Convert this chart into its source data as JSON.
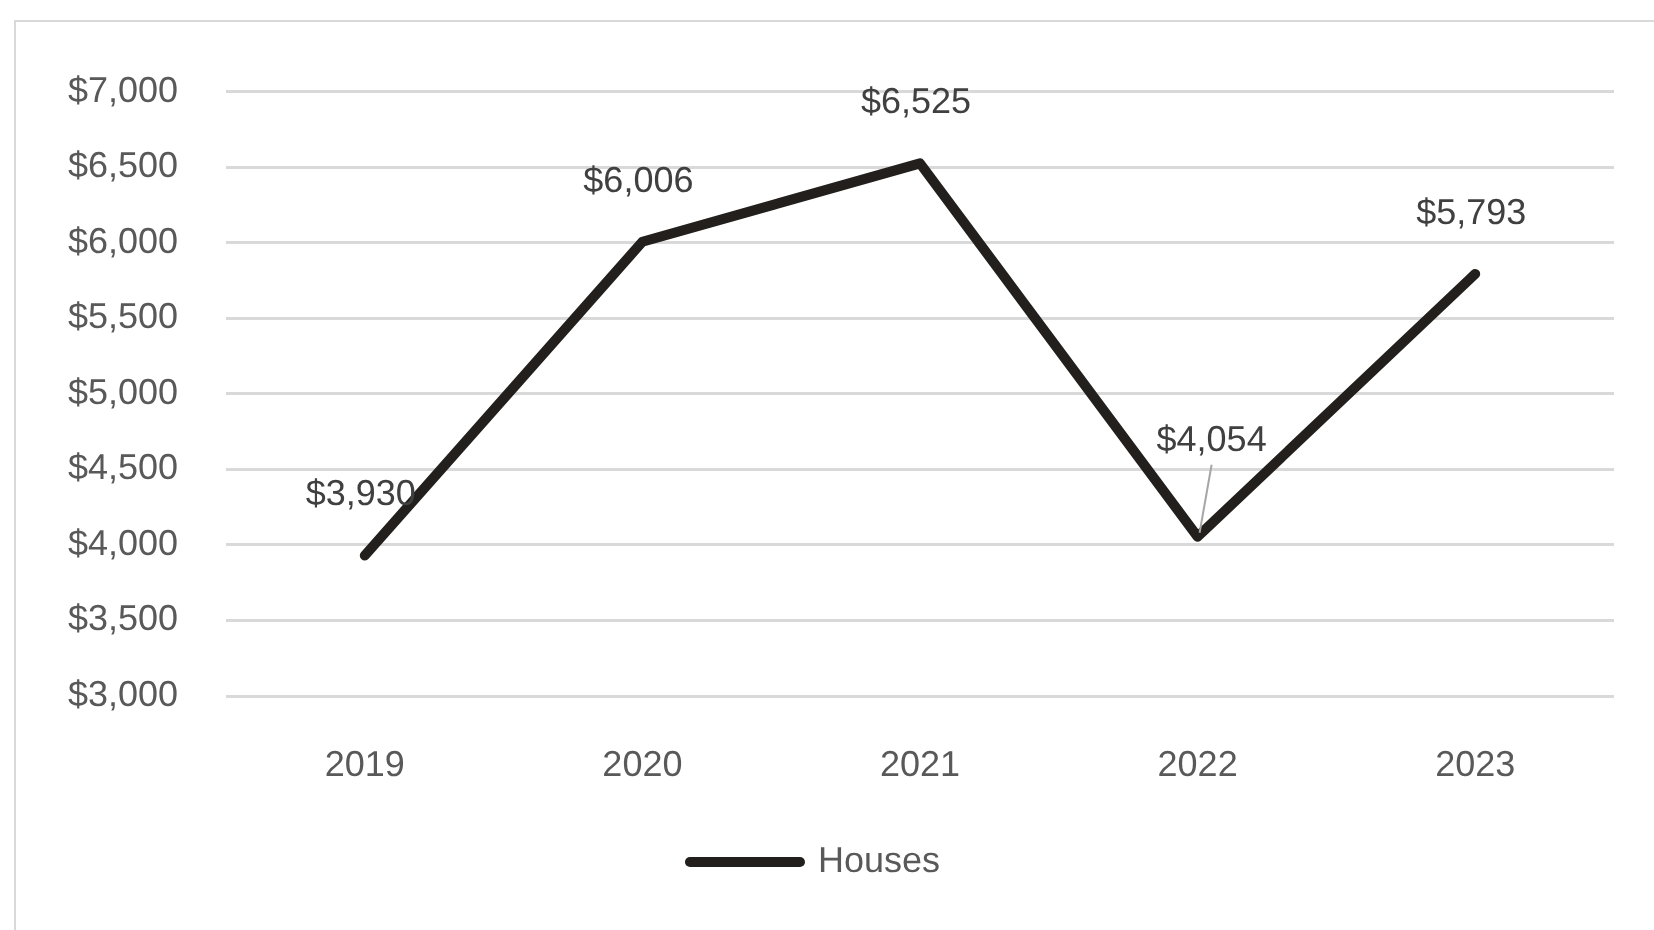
{
  "chart_data": {
    "type": "line",
    "categories": [
      "2019",
      "2020",
      "2021",
      "2022",
      "2023"
    ],
    "series": [
      {
        "name": "Houses",
        "color": "#231f1c",
        "values": [
          3930,
          6006,
          6525,
          4054,
          5793
        ],
        "value_labels": [
          "$3,930",
          "$6,006",
          "$6,525",
          "$4,054",
          "$5,793"
        ]
      }
    ],
    "ylim": [
      3000,
      7000
    ],
    "yticks": [
      {
        "value": 3000,
        "label": "$3,000"
      },
      {
        "value": 3500,
        "label": "$3,500"
      },
      {
        "value": 4000,
        "label": "$4,000"
      },
      {
        "value": 4500,
        "label": "$4,500"
      },
      {
        "value": 5000,
        "label": "$5,000"
      },
      {
        "value": 5500,
        "label": "$5,500"
      },
      {
        "value": 6000,
        "label": "$6,000"
      },
      {
        "value": 6500,
        "label": "$6,500"
      },
      {
        "value": 7000,
        "label": "$7,000"
      }
    ],
    "grid": "y",
    "legend": "bottom",
    "marker": "none",
    "line_style": "solid"
  }
}
